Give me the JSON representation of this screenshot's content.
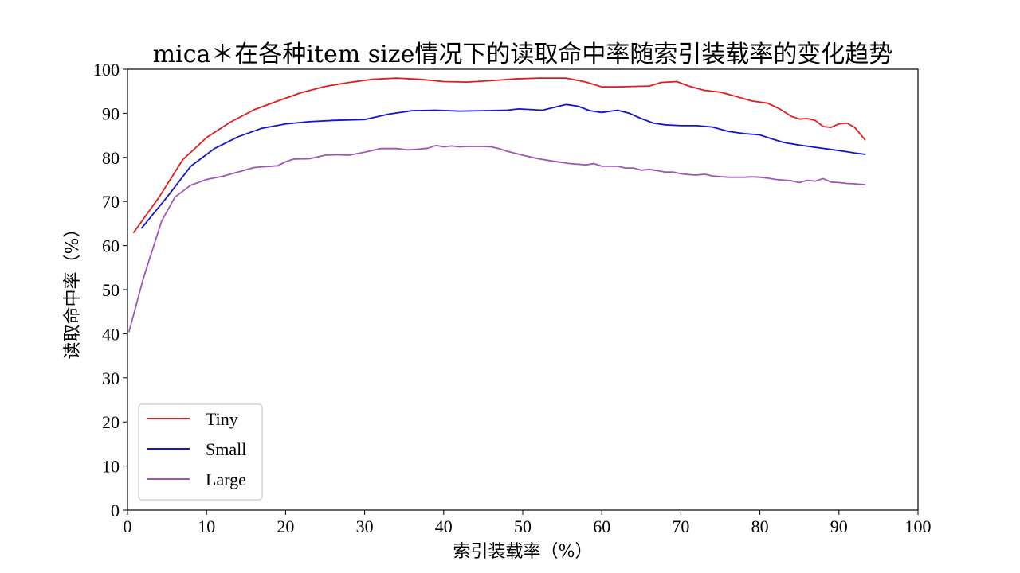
{
  "chart_data": {
    "type": "line",
    "title": "mica＊在各种item size情况下的读取命中率随索引装载率的变化趋势",
    "xlabel": "索引装载率（%）",
    "ylabel": "读取命中率（%）",
    "xlim": [
      0,
      100
    ],
    "ylim": [
      0,
      100
    ],
    "xticks": [
      0,
      10,
      20,
      30,
      40,
      50,
      60,
      70,
      80,
      90,
      100
    ],
    "yticks": [
      0,
      10,
      20,
      30,
      40,
      50,
      60,
      70,
      80,
      90,
      100
    ],
    "grid": false,
    "legend_position": "lower-left",
    "series": [
      {
        "name": "Tiny",
        "color": "#e41a1c",
        "x": [
          0.8,
          4,
          7,
          10,
          13,
          16,
          19,
          22,
          25,
          28,
          31,
          34,
          37,
          40,
          43,
          46,
          49,
          52,
          55.5,
          58,
          60,
          62,
          64,
          66,
          67.5,
          69.5,
          71,
          73,
          75,
          77,
          79,
          81,
          82.5,
          84,
          85,
          86,
          87,
          88,
          89,
          90,
          91,
          92,
          93.3
        ],
        "values": [
          63,
          71,
          79.5,
          84.5,
          88,
          90.8,
          92.8,
          94.7,
          96.1,
          97.0,
          97.7,
          98.0,
          97.7,
          97.2,
          97.1,
          97.4,
          97.8,
          98.0,
          98.0,
          97.1,
          96.0,
          96.0,
          96.1,
          96.2,
          97.0,
          97.2,
          96.2,
          95.2,
          94.8,
          93.8,
          92.8,
          92.3,
          91.0,
          89.3,
          88.7,
          88.8,
          88.4,
          87.0,
          86.8,
          87.6,
          87.8,
          86.8,
          84.0
        ]
      },
      {
        "name": "Small",
        "color": "#1414d2",
        "x": [
          1.8,
          5,
          8,
          11,
          14,
          17,
          20,
          23,
          26,
          30,
          33,
          36,
          39,
          42,
          45,
          48,
          49.5,
          52.5,
          55.5,
          57,
          58.5,
          60,
          62,
          63.5,
          65,
          66.5,
          68,
          70,
          72,
          74,
          76,
          78,
          80,
          81,
          83,
          85,
          87,
          89,
          91,
          92,
          93.3
        ],
        "values": [
          64,
          71,
          78,
          82,
          84.7,
          86.6,
          87.6,
          88.1,
          88.4,
          88.6,
          89.8,
          90.6,
          90.7,
          90.5,
          90.6,
          90.7,
          91.0,
          90.7,
          92.0,
          91.6,
          90.6,
          90.2,
          90.7,
          90.0,
          88.8,
          87.8,
          87.4,
          87.2,
          87.2,
          86.9,
          85.9,
          85.4,
          85.1,
          84.5,
          83.4,
          82.8,
          82.3,
          81.8,
          81.3,
          81.0,
          80.7
        ]
      },
      {
        "name": "Large",
        "color": "#9b59b6",
        "x": [
          0.2,
          2,
          4.3,
          6,
          8,
          10,
          12,
          14,
          16,
          17.5,
          19,
          20,
          21,
          23,
          25,
          26.5,
          28,
          30,
          32,
          34,
          35.5,
          37,
          38,
          39,
          40,
          41,
          42,
          43,
          44,
          45,
          46,
          47,
          48,
          50,
          52,
          54,
          56,
          58,
          59,
          60,
          62,
          63,
          64,
          65,
          66,
          67,
          68,
          69,
          70,
          71,
          72,
          73,
          74,
          76,
          78,
          79,
          80,
          81,
          82,
          84,
          85,
          86,
          87,
          88,
          89,
          90,
          91,
          92,
          93.3
        ],
        "values": [
          40.5,
          52.5,
          65.5,
          71,
          73.7,
          75,
          75.7,
          76.7,
          77.7,
          77.9,
          78.1,
          79.0,
          79.6,
          79.7,
          80.5,
          80.6,
          80.5,
          81.2,
          82.0,
          82.0,
          81.7,
          81.9,
          82.1,
          82.7,
          82.4,
          82.6,
          82.4,
          82.5,
          82.5,
          82.5,
          82.4,
          82.0,
          81.4,
          80.5,
          79.7,
          79.1,
          78.6,
          78.3,
          78.6,
          78.0,
          78.0,
          77.6,
          77.6,
          77.1,
          77.3,
          77.0,
          76.7,
          76.7,
          76.3,
          76.1,
          76.0,
          76.2,
          75.8,
          75.5,
          75.5,
          75.6,
          75.5,
          75.3,
          75.0,
          74.7,
          74.3,
          74.8,
          74.6,
          75.2,
          74.4,
          74.3,
          74.1,
          74.0,
          73.8
        ]
      }
    ]
  }
}
